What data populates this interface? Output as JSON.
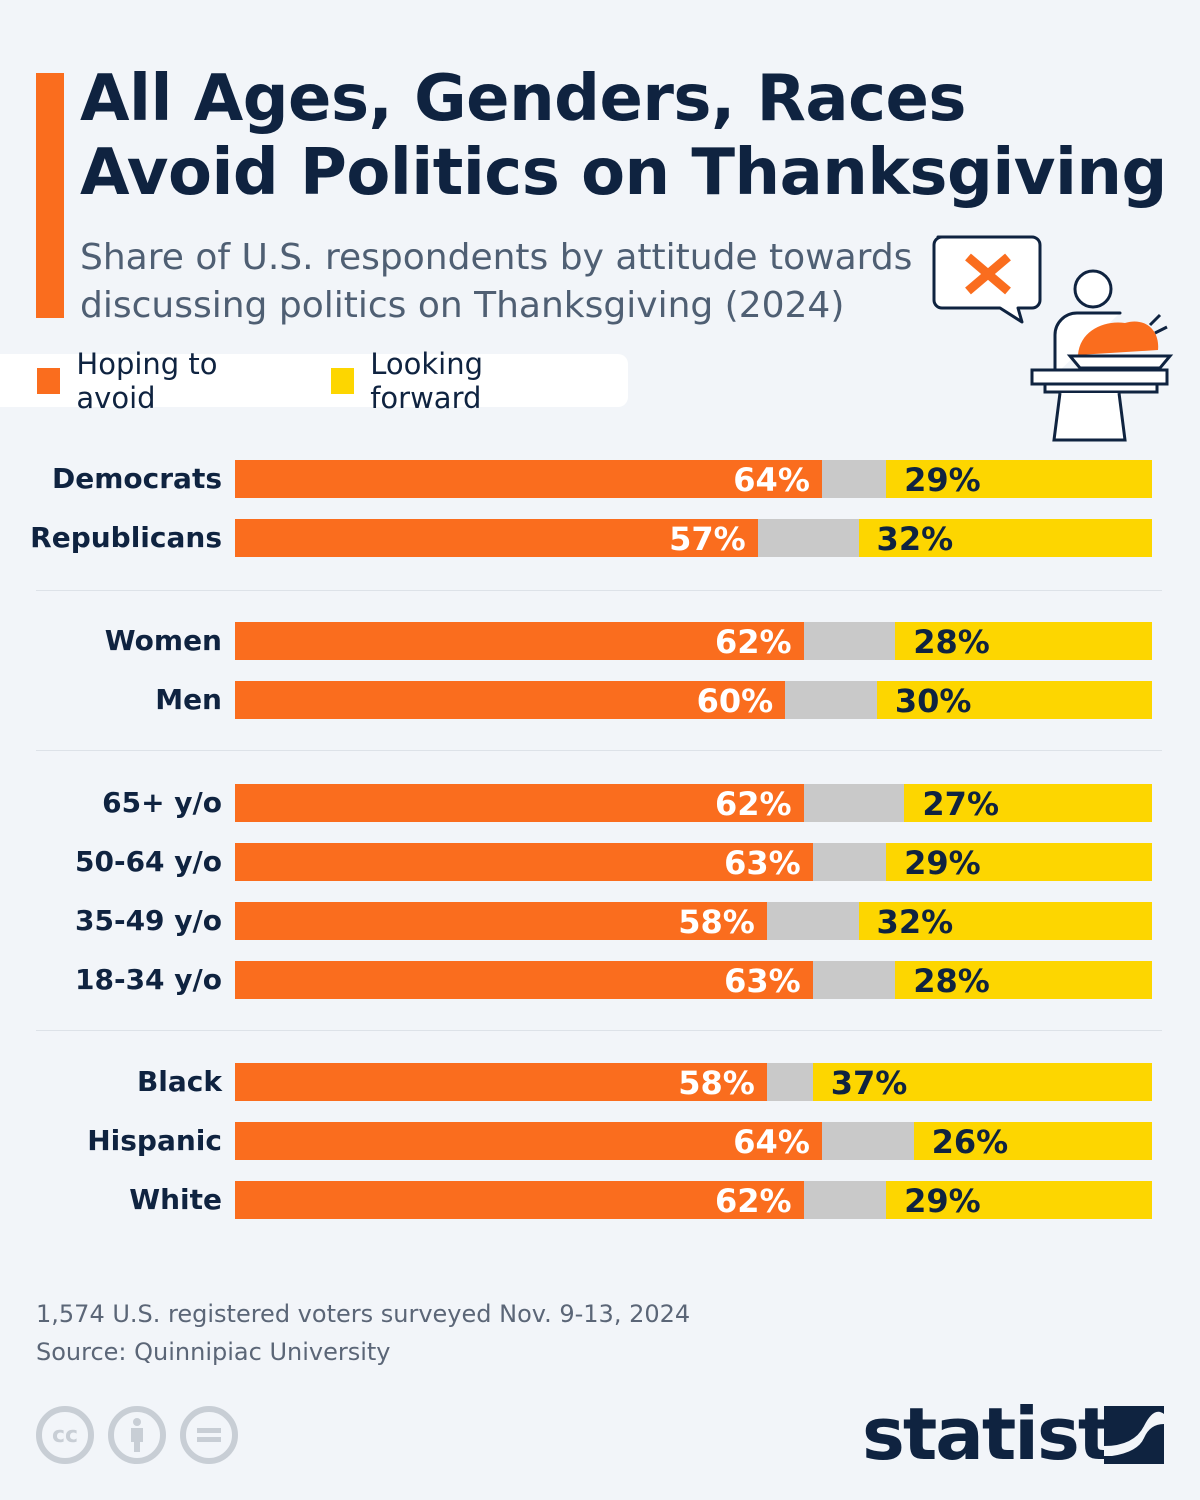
{
  "header": {
    "title": "All Ages, Genders, Races Avoid Politics on Thanksgiving",
    "subtitle": "Share of U.S. respondents by attitude towards discussing politics on Thanksgiving (2024)"
  },
  "colors": {
    "avoid": "#fa6d1e",
    "forward": "#fdd600",
    "neutral": "#c9c9c9",
    "navy": "#0f2340"
  },
  "chart_data": {
    "type": "bar",
    "stacked": true,
    "orientation": "horizontal",
    "xlim": [
      0,
      100
    ],
    "legend": [
      "Hoping to avoid",
      "Looking forward"
    ],
    "legend_position": "top-left",
    "groups": [
      {
        "categories": [
          "Democrats",
          "Republicans"
        ],
        "avoid": [
          64,
          57
        ],
        "forward": [
          29,
          32
        ]
      },
      {
        "categories": [
          "Women",
          "Men"
        ],
        "avoid": [
          62,
          60
        ],
        "forward": [
          28,
          30
        ]
      },
      {
        "categories": [
          "65+ y/o",
          "50-64 y/o",
          "35-49 y/o",
          "18-34 y/o"
        ],
        "avoid": [
          62,
          63,
          58,
          63
        ],
        "forward": [
          27,
          29,
          32,
          28
        ]
      },
      {
        "categories": [
          "Black",
          "Hispanic",
          "White"
        ],
        "avoid": [
          58,
          64,
          62
        ],
        "forward": [
          37,
          26,
          29
        ]
      }
    ]
  },
  "footer": {
    "note": "1,574 U.S. registered voters surveyed Nov. 9-13, 2024",
    "source": "Source: Quinnipiac University",
    "license_cc": "cc",
    "logo": "statista"
  }
}
